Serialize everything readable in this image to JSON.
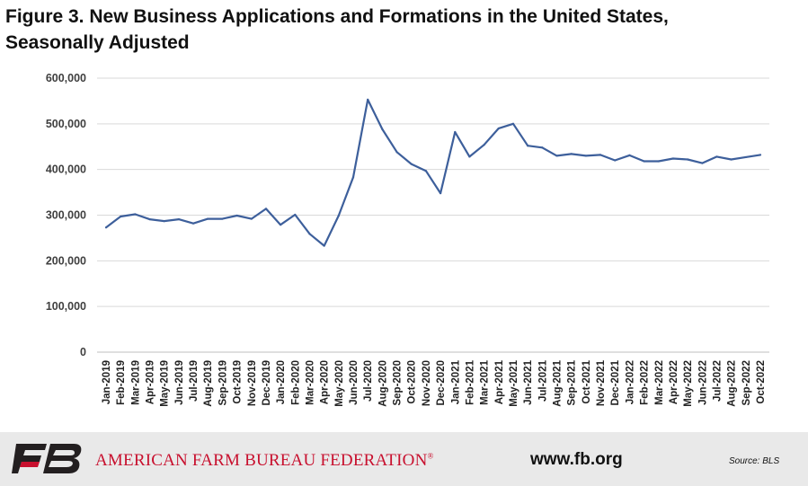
{
  "header": {
    "title_line1": "Figure 3. New Business Applications and Formations in the United States,",
    "title_line2": "Seasonally Adjusted"
  },
  "chart_data": {
    "type": "line",
    "title": "Figure 3. New Business Applications and Formations in the United States, Seasonally Adjusted",
    "xlabel": "",
    "ylabel": "",
    "ylim": [
      0,
      600000
    ],
    "yticks": [
      0,
      100000,
      200000,
      300000,
      400000,
      500000,
      600000
    ],
    "ytick_labels": [
      "0",
      "100,000",
      "200,000",
      "300,000",
      "400,000",
      "500,000",
      "600,000"
    ],
    "grid": true,
    "legend": "none",
    "line_color": "#3d5f9b",
    "categories": [
      "Jan-2019",
      "Feb-2019",
      "Mar-2019",
      "Apr-2019",
      "May-2019",
      "Jun-2019",
      "Jul-2019",
      "Aug-2019",
      "Sep-2019",
      "Oct-2019",
      "Nov-2019",
      "Dec-2019",
      "Jan-2020",
      "Feb-2020",
      "Mar-2020",
      "Apr-2020",
      "May-2020",
      "Jun-2020",
      "Jul-2020",
      "Aug-2020",
      "Sep-2020",
      "Oct-2020",
      "Nov-2020",
      "Dec-2020",
      "Jan-2021",
      "Feb-2021",
      "Mar-2021",
      "Apr-2021",
      "May-2021",
      "Jun-2021",
      "Jul-2021",
      "Aug-2021",
      "Sep-2021",
      "Oct-2021",
      "Nov-2021",
      "Dec-2021",
      "Jan-2022",
      "Feb-2022",
      "Mar-2022",
      "Apr-2022",
      "May-2022",
      "Jun-2022",
      "Jul-2022",
      "Aug-2022",
      "Sep-2022",
      "Oct-2022"
    ],
    "series": [
      {
        "values": [
          273000,
          297000,
          302000,
          291000,
          287000,
          291000,
          282000,
          292000,
          292000,
          299000,
          292000,
          314000,
          279000,
          301000,
          259000,
          233000,
          299000,
          383000,
          553000,
          488000,
          438000,
          412000,
          397000,
          348000,
          482000,
          428000,
          454000,
          490000,
          500000,
          452000,
          448000,
          430000,
          434000,
          430000,
          432000,
          420000,
          431000,
          418000,
          418000,
          424000,
          422000,
          414000,
          428000,
          422000,
          427000,
          432000
        ]
      }
    ]
  },
  "footer": {
    "logo_text": "FB",
    "org_name": "AMERICAN FARM BUREAU FEDERATION",
    "registered_mark": "®",
    "website": "www.fb.org",
    "source": "Source: BLS",
    "brand_red": "#c8102e",
    "logo_dark": "#231f20"
  }
}
